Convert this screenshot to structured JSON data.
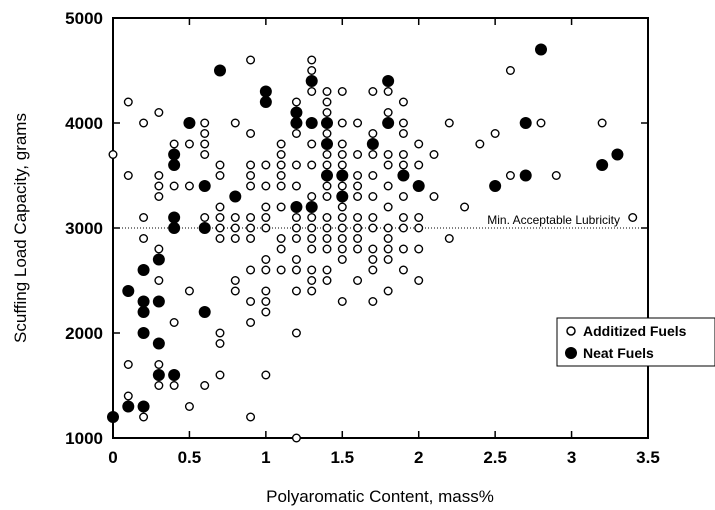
{
  "chart_data": {
    "type": "scatter",
    "title": "",
    "xlabel": "Polyaromatic Content, mass%",
    "ylabel": "Scuffing Load Capacity, grams",
    "xlim": [
      0,
      3.5
    ],
    "ylim": [
      1000,
      5000
    ],
    "xticks": [
      {
        "value": 0,
        "label": "0"
      },
      {
        "value": 0.5,
        "label": "0.5"
      },
      {
        "value": 1,
        "label": "1"
      },
      {
        "value": 1.5,
        "label": "1.5"
      },
      {
        "value": 2,
        "label": "2"
      },
      {
        "value": 2.5,
        "label": "2.5"
      },
      {
        "value": 3,
        "label": "3"
      },
      {
        "value": 3.5,
        "label": "3.5"
      }
    ],
    "yticks": [
      {
        "value": 1000,
        "label": "1000"
      },
      {
        "value": 2000,
        "label": "2000"
      },
      {
        "value": 3000,
        "label": "3000"
      },
      {
        "value": 4000,
        "label": "4000"
      },
      {
        "value": 5000,
        "label": "5000"
      }
    ],
    "grid": false,
    "legend_position": "right",
    "reference_line": {
      "y": 3000,
      "label": "Min. Acceptable Lubricity",
      "style": "dotted"
    },
    "series": [
      {
        "name": "Additized Fuels",
        "marker": "open-circle",
        "points": [
          [
            0.0,
            3700
          ],
          [
            0.1,
            4200
          ],
          [
            0.1,
            3500
          ],
          [
            0.1,
            1700
          ],
          [
            0.1,
            1400
          ],
          [
            0.2,
            4000
          ],
          [
            0.2,
            3100
          ],
          [
            0.2,
            2900
          ],
          [
            0.2,
            2200
          ],
          [
            0.2,
            1200
          ],
          [
            0.3,
            4100
          ],
          [
            0.3,
            3500
          ],
          [
            0.3,
            3400
          ],
          [
            0.3,
            3300
          ],
          [
            0.3,
            2800
          ],
          [
            0.3,
            2500
          ],
          [
            0.3,
            1700
          ],
          [
            0.3,
            1500
          ],
          [
            0.4,
            3800
          ],
          [
            0.4,
            3400
          ],
          [
            0.4,
            2100
          ],
          [
            0.4,
            1500
          ],
          [
            0.5,
            3800
          ],
          [
            0.5,
            3400
          ],
          [
            0.5,
            2400
          ],
          [
            0.5,
            1300
          ],
          [
            0.6,
            4000
          ],
          [
            0.6,
            3900
          ],
          [
            0.6,
            3800
          ],
          [
            0.6,
            3700
          ],
          [
            0.6,
            3100
          ],
          [
            0.6,
            3000
          ],
          [
            0.6,
            1500
          ],
          [
            0.7,
            3600
          ],
          [
            0.7,
            3500
          ],
          [
            0.7,
            3200
          ],
          [
            0.7,
            3100
          ],
          [
            0.7,
            3000
          ],
          [
            0.7,
            2900
          ],
          [
            0.7,
            2000
          ],
          [
            0.7,
            1900
          ],
          [
            0.7,
            1600
          ],
          [
            0.8,
            4000
          ],
          [
            0.8,
            3100
          ],
          [
            0.8,
            3000
          ],
          [
            0.8,
            2900
          ],
          [
            0.8,
            2500
          ],
          [
            0.8,
            2400
          ],
          [
            0.9,
            4600
          ],
          [
            0.9,
            3900
          ],
          [
            0.9,
            3600
          ],
          [
            0.9,
            3500
          ],
          [
            0.9,
            3400
          ],
          [
            0.9,
            3100
          ],
          [
            0.9,
            3000
          ],
          [
            0.9,
            2900
          ],
          [
            0.9,
            2600
          ],
          [
            0.9,
            2300
          ],
          [
            0.9,
            2100
          ],
          [
            0.9,
            1200
          ],
          [
            1.0,
            4300
          ],
          [
            1.0,
            3600
          ],
          [
            1.0,
            3400
          ],
          [
            1.0,
            3200
          ],
          [
            1.0,
            3100
          ],
          [
            1.0,
            3000
          ],
          [
            1.0,
            2700
          ],
          [
            1.0,
            2600
          ],
          [
            1.0,
            2400
          ],
          [
            1.0,
            2300
          ],
          [
            1.0,
            2200
          ],
          [
            1.0,
            1600
          ],
          [
            1.1,
            3800
          ],
          [
            1.1,
            3700
          ],
          [
            1.1,
            3600
          ],
          [
            1.1,
            3500
          ],
          [
            1.1,
            3400
          ],
          [
            1.1,
            3200
          ],
          [
            1.1,
            2900
          ],
          [
            1.1,
            2800
          ],
          [
            1.1,
            2600
          ],
          [
            1.2,
            4200
          ],
          [
            1.2,
            3900
          ],
          [
            1.2,
            3600
          ],
          [
            1.2,
            3400
          ],
          [
            1.2,
            3100
          ],
          [
            1.2,
            3000
          ],
          [
            1.2,
            2900
          ],
          [
            1.2,
            2700
          ],
          [
            1.2,
            2600
          ],
          [
            1.2,
            2400
          ],
          [
            1.2,
            2000
          ],
          [
            1.2,
            1000
          ],
          [
            1.3,
            4600
          ],
          [
            1.3,
            4500
          ],
          [
            1.3,
            4300
          ],
          [
            1.3,
            3800
          ],
          [
            1.3,
            3600
          ],
          [
            1.3,
            3300
          ],
          [
            1.3,
            3100
          ],
          [
            1.3,
            3000
          ],
          [
            1.3,
            2900
          ],
          [
            1.3,
            2800
          ],
          [
            1.3,
            2600
          ],
          [
            1.3,
            2500
          ],
          [
            1.3,
            2400
          ],
          [
            1.4,
            4300
          ],
          [
            1.4,
            4200
          ],
          [
            1.4,
            4100
          ],
          [
            1.4,
            4000
          ],
          [
            1.4,
            3900
          ],
          [
            1.4,
            3700
          ],
          [
            1.4,
            3600
          ],
          [
            1.4,
            3400
          ],
          [
            1.4,
            3300
          ],
          [
            1.4,
            3100
          ],
          [
            1.4,
            3000
          ],
          [
            1.4,
            2900
          ],
          [
            1.4,
            2800
          ],
          [
            1.4,
            2600
          ],
          [
            1.4,
            2500
          ],
          [
            1.5,
            4300
          ],
          [
            1.5,
            4000
          ],
          [
            1.5,
            3800
          ],
          [
            1.5,
            3700
          ],
          [
            1.5,
            3600
          ],
          [
            1.5,
            3400
          ],
          [
            1.5,
            3200
          ],
          [
            1.5,
            3100
          ],
          [
            1.5,
            3000
          ],
          [
            1.5,
            2900
          ],
          [
            1.5,
            2800
          ],
          [
            1.5,
            2700
          ],
          [
            1.5,
            2300
          ],
          [
            1.6,
            4000
          ],
          [
            1.6,
            3700
          ],
          [
            1.6,
            3500
          ],
          [
            1.6,
            3400
          ],
          [
            1.6,
            3300
          ],
          [
            1.6,
            3100
          ],
          [
            1.6,
            3000
          ],
          [
            1.6,
            2900
          ],
          [
            1.6,
            2800
          ],
          [
            1.6,
            2500
          ],
          [
            1.7,
            4300
          ],
          [
            1.7,
            3900
          ],
          [
            1.7,
            3700
          ],
          [
            1.7,
            3500
          ],
          [
            1.7,
            3300
          ],
          [
            1.7,
            3100
          ],
          [
            1.7,
            3000
          ],
          [
            1.7,
            2800
          ],
          [
            1.7,
            2700
          ],
          [
            1.7,
            2600
          ],
          [
            1.7,
            2300
          ],
          [
            1.8,
            4300
          ],
          [
            1.8,
            4100
          ],
          [
            1.8,
            3700
          ],
          [
            1.8,
            3600
          ],
          [
            1.8,
            3400
          ],
          [
            1.8,
            3200
          ],
          [
            1.8,
            3000
          ],
          [
            1.8,
            2900
          ],
          [
            1.8,
            2800
          ],
          [
            1.8,
            2700
          ],
          [
            1.8,
            2400
          ],
          [
            1.9,
            4200
          ],
          [
            1.9,
            4000
          ],
          [
            1.9,
            3900
          ],
          [
            1.9,
            3700
          ],
          [
            1.9,
            3600
          ],
          [
            1.9,
            3300
          ],
          [
            1.9,
            3100
          ],
          [
            1.9,
            3000
          ],
          [
            1.9,
            2800
          ],
          [
            1.9,
            2600
          ],
          [
            2.0,
            3800
          ],
          [
            2.0,
            3600
          ],
          [
            2.0,
            3100
          ],
          [
            2.0,
            3000
          ],
          [
            2.0,
            2800
          ],
          [
            2.0,
            2500
          ],
          [
            2.1,
            3700
          ],
          [
            2.1,
            3300
          ],
          [
            2.2,
            4000
          ],
          [
            2.2,
            2900
          ],
          [
            2.3,
            3200
          ],
          [
            2.4,
            3800
          ],
          [
            2.5,
            3900
          ],
          [
            2.6,
            4500
          ],
          [
            2.6,
            3500
          ],
          [
            2.8,
            4000
          ],
          [
            2.9,
            3500
          ],
          [
            3.2,
            4000
          ],
          [
            3.4,
            3100
          ]
        ]
      },
      {
        "name": "Neat Fuels",
        "marker": "filled-circle",
        "points": [
          [
            0.0,
            1200
          ],
          [
            0.1,
            2400
          ],
          [
            0.1,
            1300
          ],
          [
            0.2,
            2600
          ],
          [
            0.2,
            2300
          ],
          [
            0.2,
            2200
          ],
          [
            0.2,
            2000
          ],
          [
            0.2,
            1300
          ],
          [
            0.3,
            2700
          ],
          [
            0.3,
            2300
          ],
          [
            0.3,
            1900
          ],
          [
            0.3,
            1600
          ],
          [
            0.4,
            3700
          ],
          [
            0.4,
            3600
          ],
          [
            0.4,
            3100
          ],
          [
            0.4,
            3000
          ],
          [
            0.4,
            1600
          ],
          [
            0.5,
            4000
          ],
          [
            0.6,
            3400
          ],
          [
            0.6,
            3000
          ],
          [
            0.6,
            2200
          ],
          [
            0.7,
            4500
          ],
          [
            0.8,
            3300
          ],
          [
            1.0,
            4300
          ],
          [
            1.0,
            4200
          ],
          [
            1.2,
            4100
          ],
          [
            1.2,
            4000
          ],
          [
            1.2,
            3200
          ],
          [
            1.3,
            4400
          ],
          [
            1.3,
            4000
          ],
          [
            1.3,
            3200
          ],
          [
            1.4,
            4000
          ],
          [
            1.4,
            3800
          ],
          [
            1.4,
            3500
          ],
          [
            1.5,
            3500
          ],
          [
            1.5,
            3300
          ],
          [
            1.7,
            3800
          ],
          [
            1.8,
            4400
          ],
          [
            1.8,
            4000
          ],
          [
            1.9,
            3500
          ],
          [
            2.0,
            3400
          ],
          [
            2.5,
            3400
          ],
          [
            2.7,
            4000
          ],
          [
            2.7,
            3500
          ],
          [
            2.8,
            4700
          ],
          [
            3.2,
            3600
          ],
          [
            3.3,
            3700
          ]
        ]
      }
    ]
  }
}
